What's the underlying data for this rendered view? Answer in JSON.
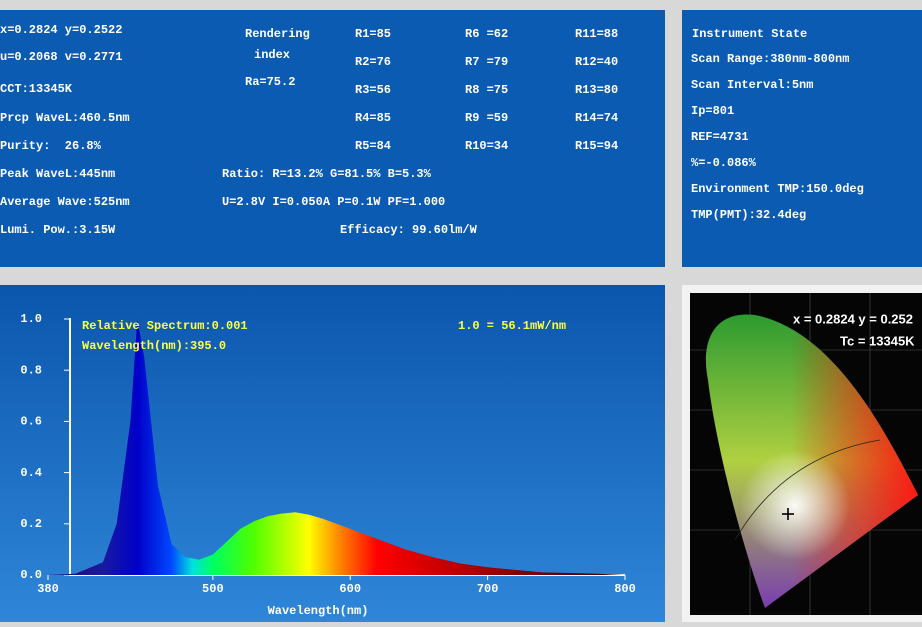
{
  "left_panel": {
    "col1": [
      "x=0.2824 y=0.2522",
      "u=0.2068 v=0.2771",
      "CCT:13345K",
      "Prcp WaveL:460.5nm",
      "Purity:  26.8%",
      "Peak WaveL:445nm",
      "Average Wave:525nm",
      "Lumi. Pow.:3.15W"
    ],
    "rendering": [
      "Rendering",
      "index"
    ],
    "ra": "Ra=75.2",
    "r_values": [
      [
        "R1=85",
        "R6 =62",
        "R11=88"
      ],
      [
        "R2=76",
        "R7 =79",
        "R12=40"
      ],
      [
        "R3=56",
        "R8 =75",
        "R13=80"
      ],
      [
        "R4=85",
        "R9 =59",
        "R14=74"
      ],
      [
        "R5=84",
        "R10=34",
        "R15=94"
      ]
    ],
    "ratio": "Ratio: R=13.2% G=81.5% B=5.3%",
    "electric": "U=2.8V I=0.050A P=0.1W PF=1.000",
    "efficacy": "Efficacy: 99.60lm/W"
  },
  "instrument_panel": {
    "title": "Instrument State",
    "lines": [
      "Scan Range:380nm-800nm",
      "Scan Interval:5nm",
      "Ip=801",
      "REF=4731",
      "%=-0.086%",
      "Environment TMP:150.0deg",
      "TMP(PMT):32.4deg"
    ]
  },
  "chart_data": {
    "type": "area",
    "xlabel": "Wavelength(nm)",
    "annotations": [
      "Relative Spectrum:0.001",
      "Wavelength(nm):395.0",
      "1.0 = 56.1mW/nm"
    ],
    "x": [
      380,
      400,
      420,
      430,
      440,
      445,
      450,
      460,
      470,
      480,
      490,
      500,
      510,
      520,
      530,
      540,
      550,
      560,
      570,
      580,
      590,
      600,
      620,
      640,
      660,
      680,
      700,
      720,
      740,
      760,
      780,
      800
    ],
    "values": [
      0,
      0.005,
      0.05,
      0.2,
      0.6,
      1.0,
      0.85,
      0.35,
      0.12,
      0.07,
      0.06,
      0.08,
      0.13,
      0.18,
      0.21,
      0.23,
      0.24,
      0.245,
      0.235,
      0.22,
      0.2,
      0.18,
      0.14,
      0.1,
      0.07,
      0.045,
      0.03,
      0.02,
      0.01,
      0.008,
      0.005,
      0
    ],
    "xlim": [
      380,
      800
    ],
    "xticks": [
      380,
      500,
      600,
      700,
      800
    ],
    "ylim": [
      0,
      1
    ],
    "yticks": [
      {
        "value": 0,
        "label": "0.0"
      },
      0.2,
      0.4,
      0.6,
      0.8,
      {
        "value": 1,
        "label": "1.0"
      }
    ]
  },
  "cie_diagram": {
    "coords": "x = 0.2824 y = 0.252",
    "tc": "Tc = 13345K"
  }
}
